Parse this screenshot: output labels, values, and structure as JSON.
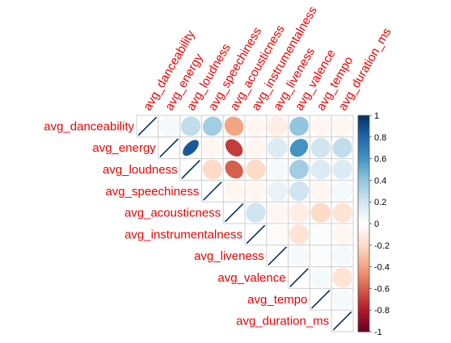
{
  "chart_data": {
    "type": "heatmap",
    "subtype": "correlation-matrix-upper",
    "method": "ellipse",
    "variables": [
      "avg_danceability",
      "avg_energy",
      "avg_loudness",
      "avg_speechiness",
      "avg_acousticness",
      "avg_instrumentalness",
      "avg_liveness",
      "avg_valence",
      "avg_tempo",
      "avg_duration_ms"
    ],
    "matrix": [
      [
        1.0,
        0.05,
        0.25,
        0.35,
        -0.4,
        -0.05,
        -0.1,
        0.4,
        -0.05,
        -0.05
      ],
      [
        0.05,
        1.0,
        0.85,
        -0.05,
        -0.7,
        -0.05,
        0.15,
        0.6,
        0.2,
        0.25
      ],
      [
        0.25,
        0.85,
        1.0,
        -0.2,
        -0.6,
        -0.2,
        0.05,
        0.35,
        0.15,
        0.15
      ],
      [
        0.35,
        -0.05,
        -0.2,
        1.0,
        -0.05,
        -0.05,
        0.1,
        0.2,
        -0.05,
        0.05
      ],
      [
        -0.4,
        -0.7,
        -0.6,
        -0.05,
        1.0,
        0.2,
        -0.05,
        -0.1,
        -0.2,
        -0.15
      ],
      [
        -0.05,
        -0.05,
        -0.2,
        -0.05,
        0.2,
        1.0,
        -0.02,
        -0.15,
        0.02,
        -0.05
      ],
      [
        -0.1,
        0.15,
        0.05,
        0.1,
        -0.05,
        -0.02,
        1.0,
        0.05,
        0.02,
        0.05
      ],
      [
        0.4,
        0.6,
        0.35,
        0.2,
        -0.1,
        -0.15,
        0.05,
        1.0,
        0.05,
        -0.15
      ],
      [
        -0.05,
        0.2,
        0.15,
        -0.05,
        -0.2,
        0.02,
        0.02,
        0.05,
        1.0,
        0.05
      ],
      [
        -0.05,
        0.25,
        0.15,
        0.05,
        -0.15,
        -0.05,
        0.05,
        -0.15,
        0.05,
        1.0
      ]
    ],
    "colorbar": {
      "min": -1,
      "max": 1,
      "ticks": [
        "1",
        "0.8",
        "0.6",
        "0.4",
        "0.2",
        "0",
        "-0.2",
        "-0.4",
        "-0.6",
        "-0.8",
        "-1"
      ]
    },
    "colors": {
      "label": "#ee0000",
      "grid": "#d0d0d0",
      "positive_max": "#053061",
      "negative_max": "#67001f",
      "zero": "#ffffff"
    },
    "legend_position": "right"
  }
}
